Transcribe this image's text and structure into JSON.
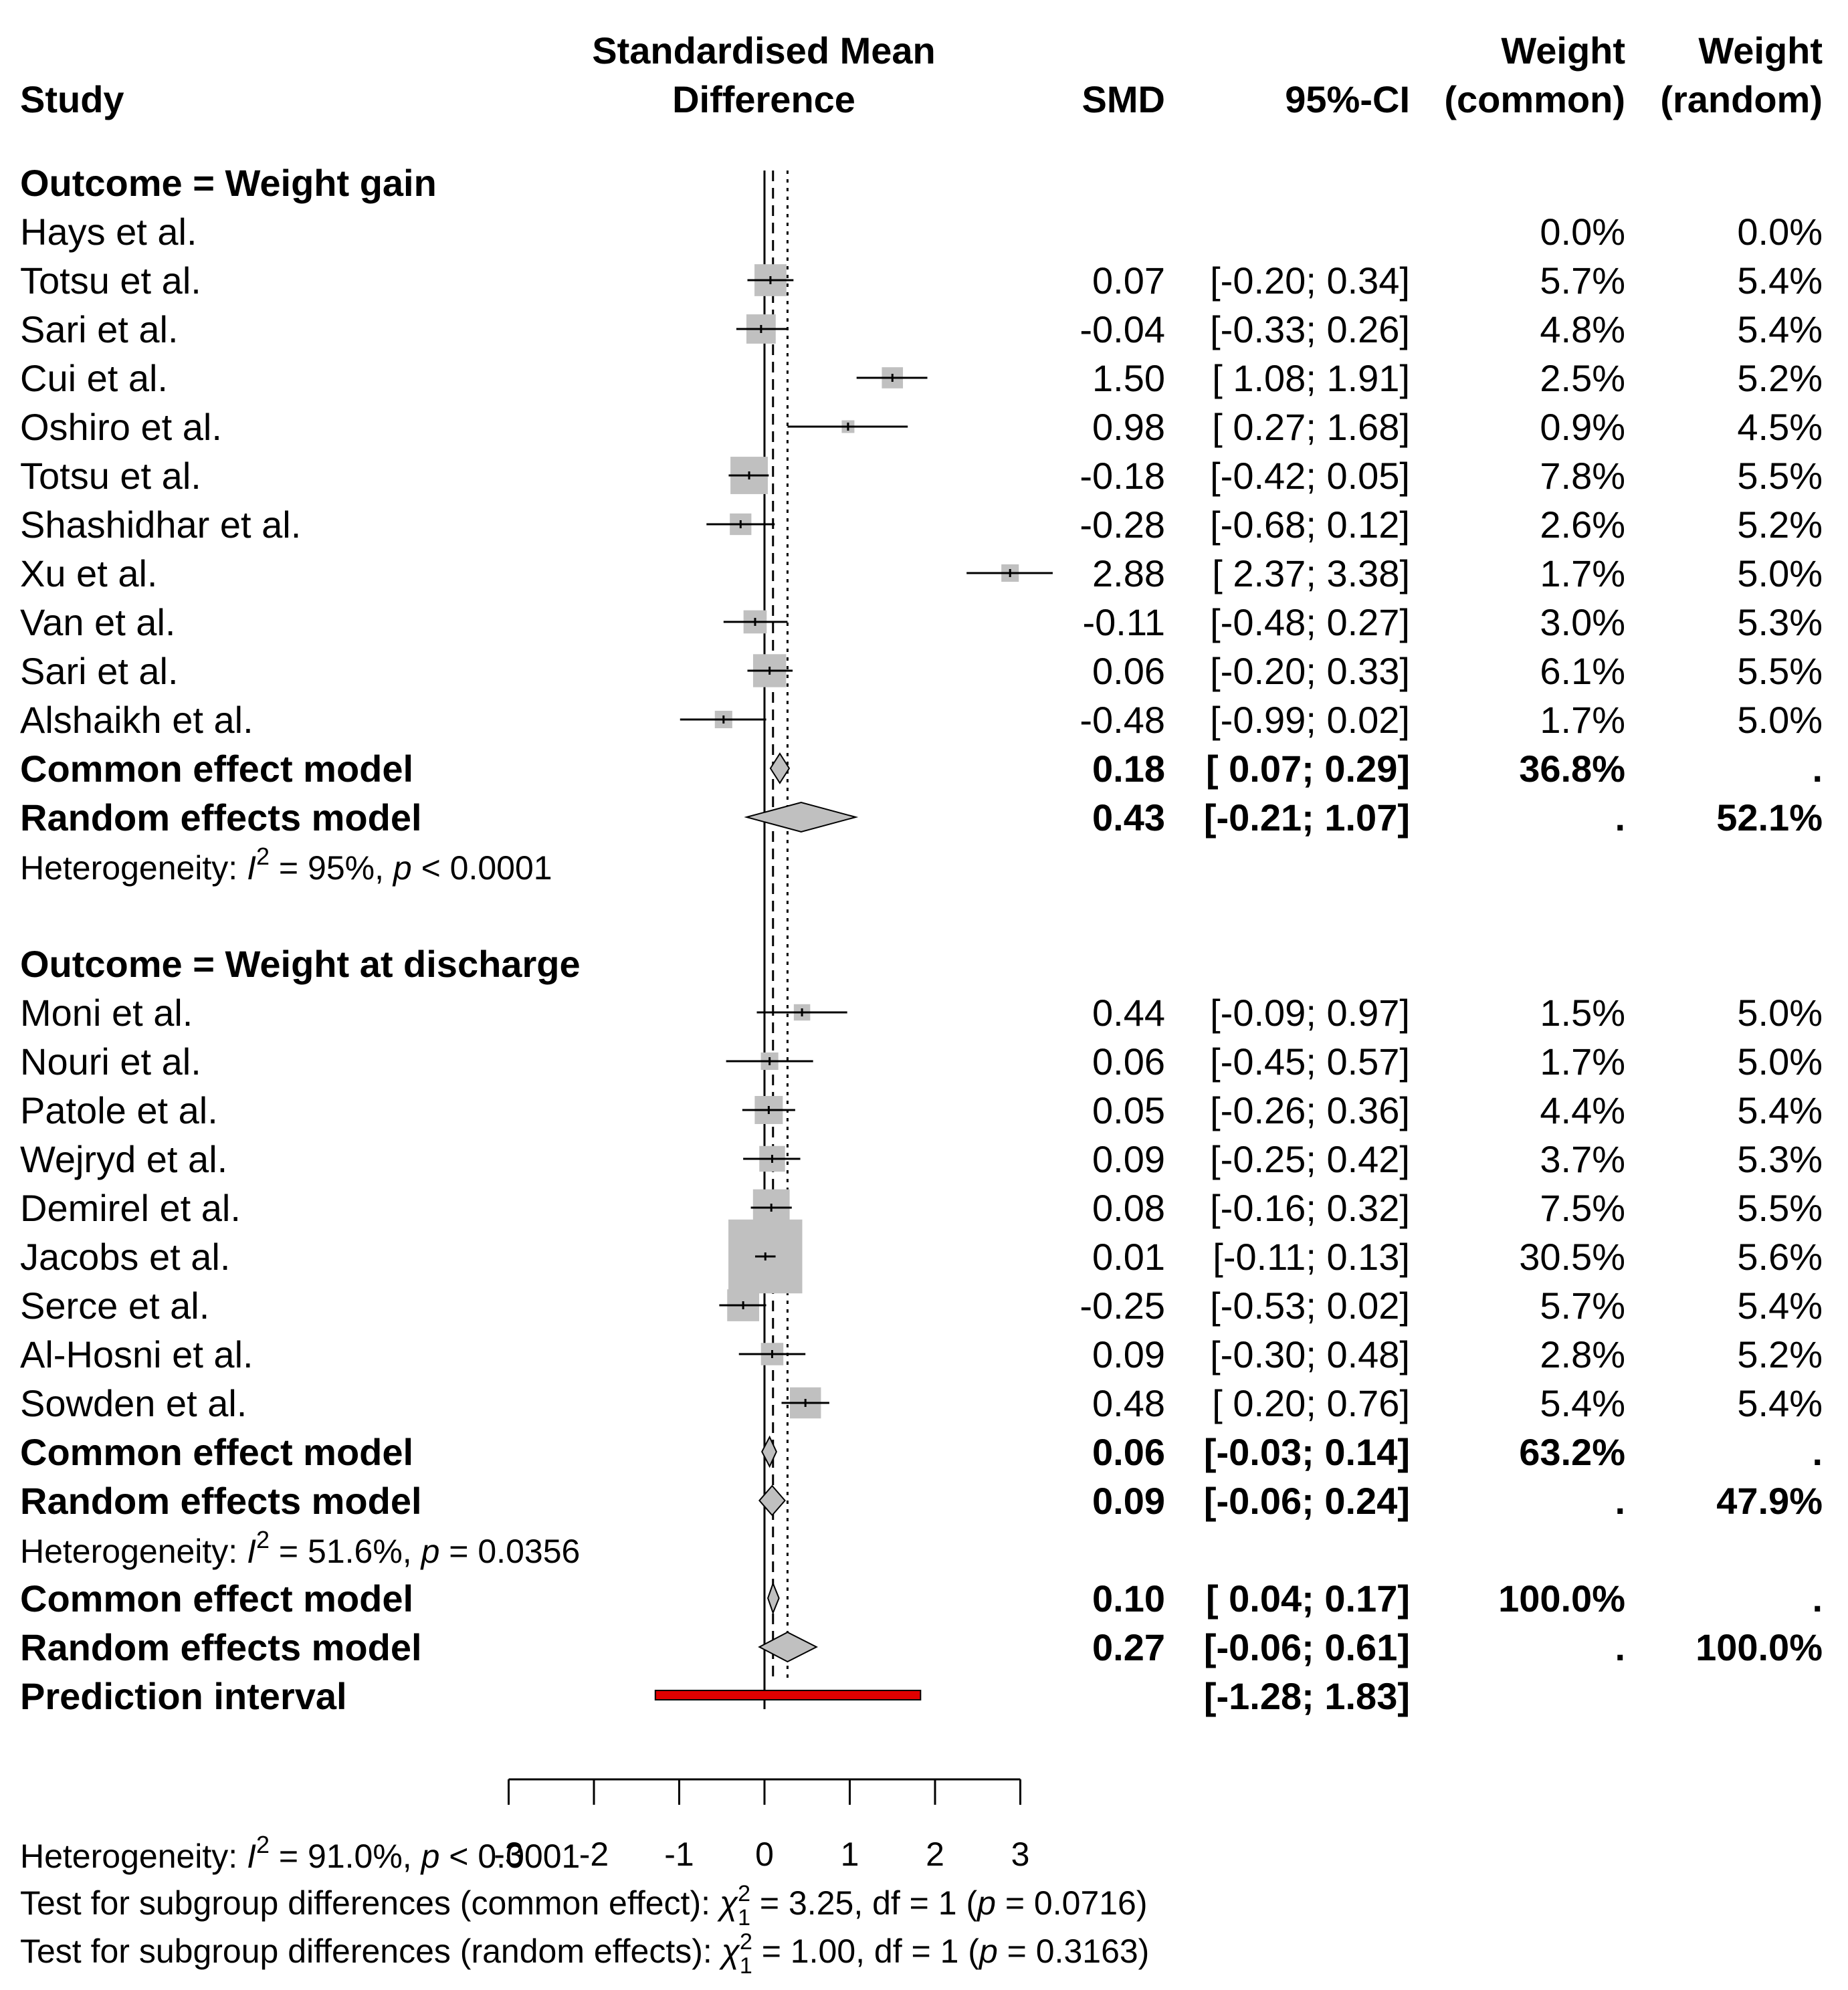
{
  "chart_data": {
    "type": "forest",
    "header": {
      "study": "Study",
      "plot_title_line1": "Standardised Mean",
      "plot_title_line2": "Difference",
      "smd": "SMD",
      "ci": "95%-CI",
      "weight_line1": "Weight",
      "weight_common_line2": "(common)",
      "weight_random_line2": "(random)"
    },
    "x_axis": {
      "range": [
        -3,
        3
      ],
      "ticks": [
        -3,
        -2,
        -1,
        0,
        1,
        2,
        3
      ],
      "tick_labels": [
        "-3",
        "-2",
        "-1",
        "0",
        "1",
        "2",
        "3"
      ],
      "null_line": 0,
      "common_overall": 0.1,
      "random_overall": 0.27
    },
    "groups": [
      {
        "title": "Outcome = Weight gain",
        "studies": [
          {
            "study": "Hays et al.",
            "smd": null,
            "lower": null,
            "upper": null,
            "smd_text": "",
            "ci_text": "",
            "w_common": "0.0%",
            "w_random": "0.0%"
          },
          {
            "study": "Totsu et al.",
            "smd": 0.07,
            "lower": -0.2,
            "upper": 0.34,
            "smd_text": "0.07",
            "ci_text": "[-0.20; 0.34]",
            "w_common": "5.7%",
            "w_random": "5.4%"
          },
          {
            "study": "Sari et al.",
            "smd": -0.04,
            "lower": -0.33,
            "upper": 0.26,
            "smd_text": "-0.04",
            "ci_text": "[-0.33; 0.26]",
            "w_common": "4.8%",
            "w_random": "5.4%"
          },
          {
            "study": "Cui et al.",
            "smd": 1.5,
            "lower": 1.08,
            "upper": 1.91,
            "smd_text": "1.50",
            "ci_text": "[ 1.08; 1.91]",
            "w_common": "2.5%",
            "w_random": "5.2%"
          },
          {
            "study": "Oshiro et al.",
            "smd": 0.98,
            "lower": 0.27,
            "upper": 1.68,
            "smd_text": "0.98",
            "ci_text": "[ 0.27; 1.68]",
            "w_common": "0.9%",
            "w_random": "4.5%"
          },
          {
            "study": "Totsu et al.",
            "smd": -0.18,
            "lower": -0.42,
            "upper": 0.05,
            "smd_text": "-0.18",
            "ci_text": "[-0.42; 0.05]",
            "w_common": "7.8%",
            "w_random": "5.5%"
          },
          {
            "study": "Shashidhar et al.",
            "smd": -0.28,
            "lower": -0.68,
            "upper": 0.12,
            "smd_text": "-0.28",
            "ci_text": "[-0.68; 0.12]",
            "w_common": "2.6%",
            "w_random": "5.2%"
          },
          {
            "study": "Xu et al.",
            "smd": 2.88,
            "lower": 2.37,
            "upper": 3.38,
            "smd_text": "2.88",
            "ci_text": "[ 2.37; 3.38]",
            "w_common": "1.7%",
            "w_random": "5.0%"
          },
          {
            "study": "Van et al.",
            "smd": -0.11,
            "lower": -0.48,
            "upper": 0.27,
            "smd_text": "-0.11",
            "ci_text": "[-0.48; 0.27]",
            "w_common": "3.0%",
            "w_random": "5.3%"
          },
          {
            "study": "Sari et al.",
            "smd": 0.06,
            "lower": -0.2,
            "upper": 0.33,
            "smd_text": "0.06",
            "ci_text": "[-0.20; 0.33]",
            "w_common": "6.1%",
            "w_random": "5.5%"
          },
          {
            "study": "Alshaikh et al.",
            "smd": -0.48,
            "lower": -0.99,
            "upper": 0.02,
            "smd_text": "-0.48",
            "ci_text": "[-0.99; 0.02]",
            "w_common": "1.7%",
            "w_random": "5.0%"
          }
        ],
        "common": {
          "label": "Common effect model",
          "smd": 0.18,
          "lower": 0.07,
          "upper": 0.29,
          "smd_text": "0.18",
          "ci_text": "[ 0.07; 0.29]",
          "w_common": "36.8%",
          "w_random": "."
        },
        "random": {
          "label": "Random effects model",
          "smd": 0.43,
          "lower": -0.21,
          "upper": 1.07,
          "smd_text": "0.43",
          "ci_text": "[-0.21; 1.07]",
          "w_common": ".",
          "w_random": "52.1%"
        },
        "heterogeneity": {
          "prefix": "Heterogeneity: ",
          "i2_symbol": "I",
          "i2_value": " = 95%, ",
          "p_symbol": "p",
          "p_value": " < 0.0001"
        }
      },
      {
        "title": "Outcome = Weight at discharge",
        "studies": [
          {
            "study": "Moni et al.",
            "smd": 0.44,
            "lower": -0.09,
            "upper": 0.97,
            "smd_text": "0.44",
            "ci_text": "[-0.09; 0.97]",
            "w_common": "1.5%",
            "w_random": "5.0%"
          },
          {
            "study": "Nouri et al.",
            "smd": 0.06,
            "lower": -0.45,
            "upper": 0.57,
            "smd_text": "0.06",
            "ci_text": "[-0.45; 0.57]",
            "w_common": "1.7%",
            "w_random": "5.0%"
          },
          {
            "study": "Patole et al.",
            "smd": 0.05,
            "lower": -0.26,
            "upper": 0.36,
            "smd_text": "0.05",
            "ci_text": "[-0.26; 0.36]",
            "w_common": "4.4%",
            "w_random": "5.4%"
          },
          {
            "study": "Wejryd et al.",
            "smd": 0.09,
            "lower": -0.25,
            "upper": 0.42,
            "smd_text": "0.09",
            "ci_text": "[-0.25; 0.42]",
            "w_common": "3.7%",
            "w_random": "5.3%"
          },
          {
            "study": "Demirel et al.",
            "smd": 0.08,
            "lower": -0.16,
            "upper": 0.32,
            "smd_text": "0.08",
            "ci_text": "[-0.16; 0.32]",
            "w_common": "7.5%",
            "w_random": "5.5%"
          },
          {
            "study": "Jacobs et al.",
            "smd": 0.01,
            "lower": -0.11,
            "upper": 0.13,
            "smd_text": "0.01",
            "ci_text": "[-0.11; 0.13]",
            "w_common": "30.5%",
            "w_random": "5.6%"
          },
          {
            "study": "Serce et al.",
            "smd": -0.25,
            "lower": -0.53,
            "upper": 0.02,
            "smd_text": "-0.25",
            "ci_text": "[-0.53; 0.02]",
            "w_common": "5.7%",
            "w_random": "5.4%"
          },
          {
            "study": "Al-Hosni et al.",
            "smd": 0.09,
            "lower": -0.3,
            "upper": 0.48,
            "smd_text": "0.09",
            "ci_text": "[-0.30; 0.48]",
            "w_common": "2.8%",
            "w_random": "5.2%"
          },
          {
            "study": "Sowden et al.",
            "smd": 0.48,
            "lower": 0.2,
            "upper": 0.76,
            "smd_text": "0.48",
            "ci_text": "[ 0.20; 0.76]",
            "w_common": "5.4%",
            "w_random": "5.4%"
          }
        ],
        "common": {
          "label": "Common effect model",
          "smd": 0.06,
          "lower": -0.03,
          "upper": 0.14,
          "smd_text": "0.06",
          "ci_text": "[-0.03; 0.14]",
          "w_common": "63.2%",
          "w_random": "."
        },
        "random": {
          "label": "Random effects model",
          "smd": 0.09,
          "lower": -0.06,
          "upper": 0.24,
          "smd_text": "0.09",
          "ci_text": "[-0.06; 0.24]",
          "w_common": ".",
          "w_random": "47.9%"
        },
        "heterogeneity": {
          "prefix": "Heterogeneity: ",
          "i2_symbol": "I",
          "i2_value": " = 51.6%, ",
          "p_symbol": "p",
          "p_value": " = 0.0356"
        }
      }
    ],
    "overall": {
      "common": {
        "label": "Common effect model",
        "smd": 0.1,
        "lower": 0.04,
        "upper": 0.17,
        "smd_text": "0.10",
        "ci_text": "[ 0.04; 0.17]",
        "w_common": "100.0%",
        "w_random": "."
      },
      "random": {
        "label": "Random effects model",
        "smd": 0.27,
        "lower": -0.06,
        "upper": 0.61,
        "smd_text": "0.27",
        "ci_text": "[-0.06; 0.61]",
        "w_common": ".",
        "w_random": "100.0%"
      },
      "prediction": {
        "label": "Prediction interval",
        "lower": -1.28,
        "upper": 1.83,
        "ci_text": "[-1.28; 1.83]",
        "color": "#e00000"
      },
      "heterogeneity": {
        "prefix": "Heterogeneity: ",
        "i2_symbol": "I",
        "i2_value": " = 91.0%, ",
        "p_symbol": "p",
        "p_value": " < 0.0001"
      },
      "subgroup_common": {
        "prefix": "Test for subgroup differences (common effect): ",
        "chi_symbol": "χ",
        "chi_value": " = 3.25, df = 1 (",
        "p_symbol": "p",
        "p_value": " = 0.0716)"
      },
      "subgroup_random": {
        "prefix": "Test for subgroup differences (random effects): ",
        "chi_symbol": "χ",
        "chi_value": " = 1.00, df = 1 (",
        "p_symbol": "p",
        "p_value": " = 0.3163)"
      }
    },
    "colors": {
      "square": "#c0c0c0",
      "diamond": "#c0c0c0",
      "prediction": "#e00000",
      "line": "#000000"
    }
  }
}
